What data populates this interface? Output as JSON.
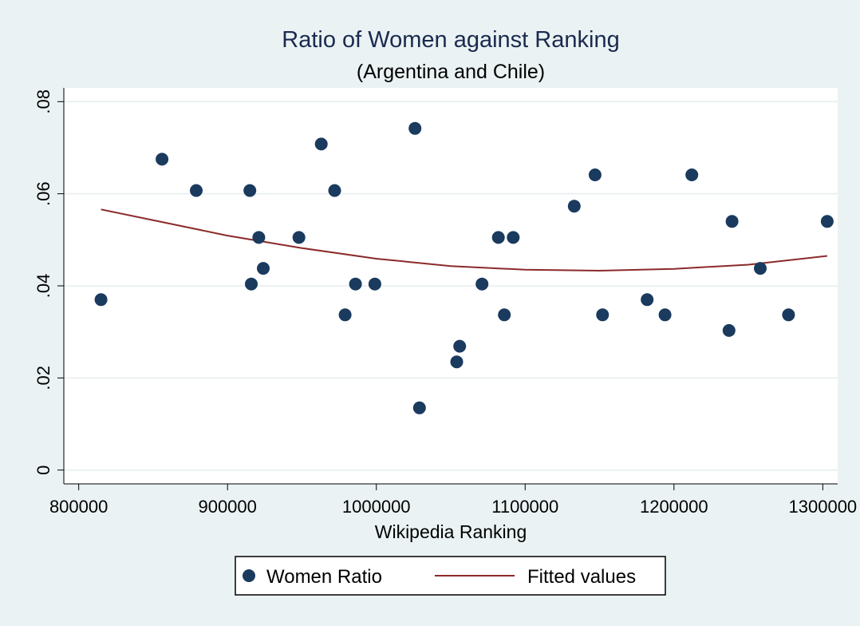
{
  "chart_data": {
    "type": "scatter",
    "title": "Ratio of Women against Ranking",
    "subtitle": "(Argentina and Chile)",
    "xlabel": "Wikipedia Ranking",
    "ylabel": "",
    "xlim": [
      790000,
      1310000
    ],
    "ylim": [
      -0.003,
      0.083
    ],
    "x_ticks": [
      800000,
      900000,
      1000000,
      1100000,
      1200000,
      1300000
    ],
    "x_tick_labels": [
      "800000",
      "900000",
      "1000000",
      "1100000",
      "1200000",
      "1300000"
    ],
    "y_ticks": [
      0,
      0.02,
      0.04,
      0.06,
      0.08
    ],
    "y_tick_labels": [
      "0",
      ".02",
      ".04",
      ".06",
      ".08"
    ],
    "grid": true,
    "legend_position": "bottom",
    "series": [
      {
        "name": "Women Ratio",
        "type": "scatter",
        "color": "#1a3a5e",
        "points": [
          {
            "x": 815000,
            "y": 0.037
          },
          {
            "x": 856000,
            "y": 0.0675
          },
          {
            "x": 879000,
            "y": 0.0607
          },
          {
            "x": 915000,
            "y": 0.0607
          },
          {
            "x": 916000,
            "y": 0.0404
          },
          {
            "x": 921000,
            "y": 0.0505
          },
          {
            "x": 924000,
            "y": 0.0438
          },
          {
            "x": 948000,
            "y": 0.0505
          },
          {
            "x": 963000,
            "y": 0.0708
          },
          {
            "x": 972000,
            "y": 0.0607
          },
          {
            "x": 979000,
            "y": 0.0337
          },
          {
            "x": 986000,
            "y": 0.0404
          },
          {
            "x": 999000,
            "y": 0.0404
          },
          {
            "x": 1026000,
            "y": 0.0742
          },
          {
            "x": 1029000,
            "y": 0.0135
          },
          {
            "x": 1054000,
            "y": 0.0235
          },
          {
            "x": 1056000,
            "y": 0.0269
          },
          {
            "x": 1071000,
            "y": 0.0404
          },
          {
            "x": 1082000,
            "y": 0.0505
          },
          {
            "x": 1086000,
            "y": 0.0337
          },
          {
            "x": 1092000,
            "y": 0.0505
          },
          {
            "x": 1133000,
            "y": 0.0573
          },
          {
            "x": 1147000,
            "y": 0.0641
          },
          {
            "x": 1152000,
            "y": 0.0337
          },
          {
            "x": 1182000,
            "y": 0.037
          },
          {
            "x": 1194000,
            "y": 0.0337
          },
          {
            "x": 1212000,
            "y": 0.0641
          },
          {
            "x": 1237000,
            "y": 0.0303
          },
          {
            "x": 1239000,
            "y": 0.054
          },
          {
            "x": 1258000,
            "y": 0.0438
          },
          {
            "x": 1277000,
            "y": 0.0337
          },
          {
            "x": 1303000,
            "y": 0.054
          }
        ]
      },
      {
        "name": "Fitted values",
        "type": "line",
        "color": "#8b2a2a",
        "points": [
          {
            "x": 815000,
            "y": 0.0566
          },
          {
            "x": 860000,
            "y": 0.0536
          },
          {
            "x": 900000,
            "y": 0.0509
          },
          {
            "x": 950000,
            "y": 0.0482
          },
          {
            "x": 1000000,
            "y": 0.0459
          },
          {
            "x": 1050000,
            "y": 0.0443
          },
          {
            "x": 1100000,
            "y": 0.0435
          },
          {
            "x": 1150000,
            "y": 0.0433
          },
          {
            "x": 1200000,
            "y": 0.0437
          },
          {
            "x": 1250000,
            "y": 0.0446
          },
          {
            "x": 1303000,
            "y": 0.0465
          }
        ]
      }
    ]
  }
}
